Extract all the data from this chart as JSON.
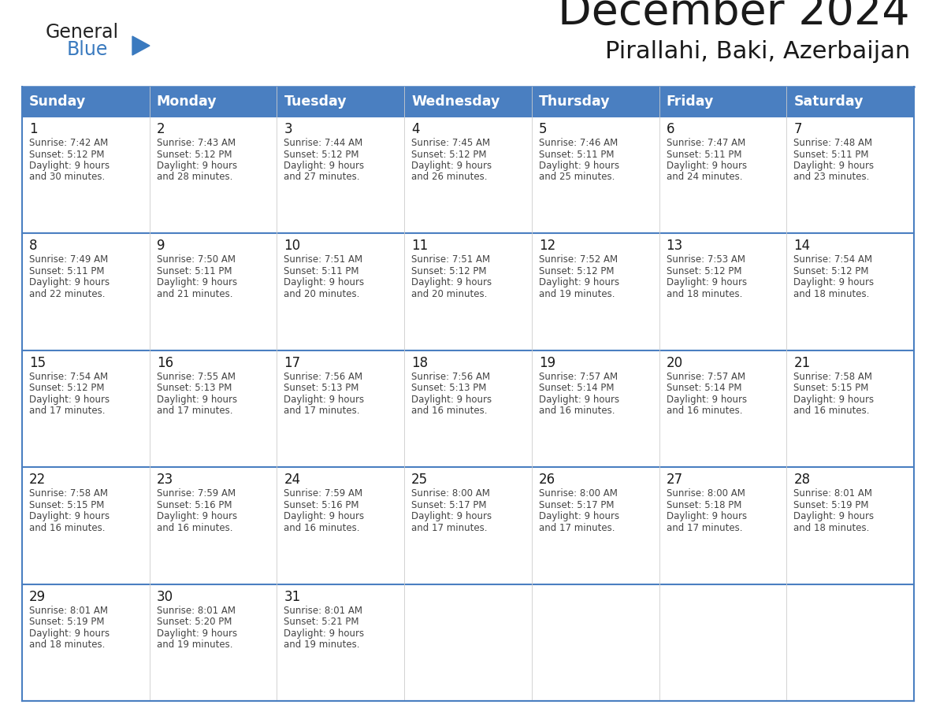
{
  "title": "December 2024",
  "subtitle": "Pirallahi, Baki, Azerbaijan",
  "header_color": "#4a7fc1",
  "header_text_color": "#FFFFFF",
  "row_bg_even": "#FFFFFF",
  "row_bg_odd": "#FFFFFF",
  "divider_color": "#4a7fc1",
  "day_headers": [
    "Sunday",
    "Monday",
    "Tuesday",
    "Wednesday",
    "Thursday",
    "Friday",
    "Saturday"
  ],
  "weeks": [
    [
      {
        "day": 1,
        "sunrise": "7:42 AM",
        "sunset": "5:12 PM",
        "daylight": "9 hours\nand 30 minutes."
      },
      {
        "day": 2,
        "sunrise": "7:43 AM",
        "sunset": "5:12 PM",
        "daylight": "9 hours\nand 28 minutes."
      },
      {
        "day": 3,
        "sunrise": "7:44 AM",
        "sunset": "5:12 PM",
        "daylight": "9 hours\nand 27 minutes."
      },
      {
        "day": 4,
        "sunrise": "7:45 AM",
        "sunset": "5:12 PM",
        "daylight": "9 hours\nand 26 minutes."
      },
      {
        "day": 5,
        "sunrise": "7:46 AM",
        "sunset": "5:11 PM",
        "daylight": "9 hours\nand 25 minutes."
      },
      {
        "day": 6,
        "sunrise": "7:47 AM",
        "sunset": "5:11 PM",
        "daylight": "9 hours\nand 24 minutes."
      },
      {
        "day": 7,
        "sunrise": "7:48 AM",
        "sunset": "5:11 PM",
        "daylight": "9 hours\nand 23 minutes."
      }
    ],
    [
      {
        "day": 8,
        "sunrise": "7:49 AM",
        "sunset": "5:11 PM",
        "daylight": "9 hours\nand 22 minutes."
      },
      {
        "day": 9,
        "sunrise": "7:50 AM",
        "sunset": "5:11 PM",
        "daylight": "9 hours\nand 21 minutes."
      },
      {
        "day": 10,
        "sunrise": "7:51 AM",
        "sunset": "5:11 PM",
        "daylight": "9 hours\nand 20 minutes."
      },
      {
        "day": 11,
        "sunrise": "7:51 AM",
        "sunset": "5:12 PM",
        "daylight": "9 hours\nand 20 minutes."
      },
      {
        "day": 12,
        "sunrise": "7:52 AM",
        "sunset": "5:12 PM",
        "daylight": "9 hours\nand 19 minutes."
      },
      {
        "day": 13,
        "sunrise": "7:53 AM",
        "sunset": "5:12 PM",
        "daylight": "9 hours\nand 18 minutes."
      },
      {
        "day": 14,
        "sunrise": "7:54 AM",
        "sunset": "5:12 PM",
        "daylight": "9 hours\nand 18 minutes."
      }
    ],
    [
      {
        "day": 15,
        "sunrise": "7:54 AM",
        "sunset": "5:12 PM",
        "daylight": "9 hours\nand 17 minutes."
      },
      {
        "day": 16,
        "sunrise": "7:55 AM",
        "sunset": "5:13 PM",
        "daylight": "9 hours\nand 17 minutes."
      },
      {
        "day": 17,
        "sunrise": "7:56 AM",
        "sunset": "5:13 PM",
        "daylight": "9 hours\nand 17 minutes."
      },
      {
        "day": 18,
        "sunrise": "7:56 AM",
        "sunset": "5:13 PM",
        "daylight": "9 hours\nand 16 minutes."
      },
      {
        "day": 19,
        "sunrise": "7:57 AM",
        "sunset": "5:14 PM",
        "daylight": "9 hours\nand 16 minutes."
      },
      {
        "day": 20,
        "sunrise": "7:57 AM",
        "sunset": "5:14 PM",
        "daylight": "9 hours\nand 16 minutes."
      },
      {
        "day": 21,
        "sunrise": "7:58 AM",
        "sunset": "5:15 PM",
        "daylight": "9 hours\nand 16 minutes."
      }
    ],
    [
      {
        "day": 22,
        "sunrise": "7:58 AM",
        "sunset": "5:15 PM",
        "daylight": "9 hours\nand 16 minutes."
      },
      {
        "day": 23,
        "sunrise": "7:59 AM",
        "sunset": "5:16 PM",
        "daylight": "9 hours\nand 16 minutes."
      },
      {
        "day": 24,
        "sunrise": "7:59 AM",
        "sunset": "5:16 PM",
        "daylight": "9 hours\nand 16 minutes."
      },
      {
        "day": 25,
        "sunrise": "8:00 AM",
        "sunset": "5:17 PM",
        "daylight": "9 hours\nand 17 minutes."
      },
      {
        "day": 26,
        "sunrise": "8:00 AM",
        "sunset": "5:17 PM",
        "daylight": "9 hours\nand 17 minutes."
      },
      {
        "day": 27,
        "sunrise": "8:00 AM",
        "sunset": "5:18 PM",
        "daylight": "9 hours\nand 17 minutes."
      },
      {
        "day": 28,
        "sunrise": "8:01 AM",
        "sunset": "5:19 PM",
        "daylight": "9 hours\nand 18 minutes."
      }
    ],
    [
      {
        "day": 29,
        "sunrise": "8:01 AM",
        "sunset": "5:19 PM",
        "daylight": "9 hours\nand 18 minutes."
      },
      {
        "day": 30,
        "sunrise": "8:01 AM",
        "sunset": "5:20 PM",
        "daylight": "9 hours\nand 19 minutes."
      },
      {
        "day": 31,
        "sunrise": "8:01 AM",
        "sunset": "5:21 PM",
        "daylight": "9 hours\nand 19 minutes."
      },
      null,
      null,
      null,
      null
    ]
  ]
}
